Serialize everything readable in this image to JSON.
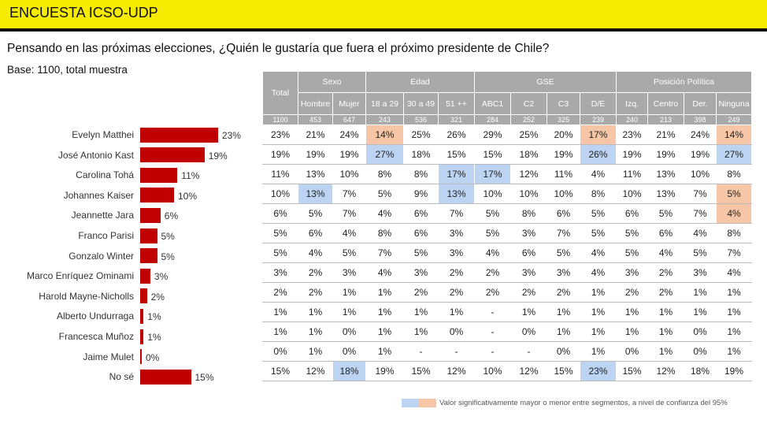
{
  "header": {
    "title": "ENCUESTA ICSO-UDP"
  },
  "question": "Pensando en las próximas elecciones, ¿Quién le gustaría que fuera el próximo presidente de Chile?",
  "base": "Base: 1100, total muestra",
  "colors": {
    "bar": "#c00000",
    "header_bg": "#f5ec00",
    "high": "#f6c6a6",
    "low": "#bcd4f2"
  },
  "table": {
    "total_label": "Total",
    "total_n": "1100",
    "groups": [
      {
        "label": "Sexo",
        "columns": [
          {
            "label": "Hombre",
            "n": "453"
          },
          {
            "label": "Mujer",
            "n": "647"
          }
        ]
      },
      {
        "label": "Edad",
        "columns": [
          {
            "label": "18 a  29",
            "n": "243"
          },
          {
            "label": "30 a  49",
            "n": "536"
          },
          {
            "label": "51 ++",
            "n": "321"
          }
        ]
      },
      {
        "label": "GSE",
        "columns": [
          {
            "label": "ABC1",
            "n": "284"
          },
          {
            "label": "C2",
            "n": "252"
          },
          {
            "label": "C3",
            "n": "325"
          },
          {
            "label": "D/E",
            "n": "239"
          }
        ]
      },
      {
        "label": "Posición Política",
        "columns": [
          {
            "label": "Izq.",
            "n": "240"
          },
          {
            "label": "Centro",
            "n": "213"
          },
          {
            "label": "Der.",
            "n": "398"
          },
          {
            "label": "Ninguna",
            "n": "249"
          }
        ]
      }
    ],
    "rows": [
      {
        "name": "Evelyn Matthei",
        "values": [
          "23%",
          "21%",
          "24%",
          "14%",
          "25%",
          "26%",
          "29%",
          "25%",
          "20%",
          "17%",
          "23%",
          "21%",
          "24%",
          "14%"
        ],
        "high": [
          3,
          9,
          13
        ],
        "low": []
      },
      {
        "name": "José Antonio Kast",
        "values": [
          "19%",
          "19%",
          "19%",
          "27%",
          "18%",
          "15%",
          "15%",
          "18%",
          "19%",
          "26%",
          "19%",
          "19%",
          "19%",
          "27%"
        ],
        "high": [],
        "low": [
          3,
          9,
          13
        ]
      },
      {
        "name": "Carolina Tohá",
        "values": [
          "11%",
          "13%",
          "10%",
          "8%",
          "8%",
          "17%",
          "17%",
          "12%",
          "11%",
          "4%",
          "11%",
          "13%",
          "10%",
          "8%"
        ],
        "high": [],
        "low": [
          5,
          6
        ]
      },
      {
        "name": "Johannes Kaiser",
        "values": [
          "10%",
          "13%",
          "7%",
          "5%",
          "9%",
          "13%",
          "10%",
          "10%",
          "10%",
          "8%",
          "10%",
          "13%",
          "7%",
          "5%"
        ],
        "high": [
          13
        ],
        "low": [
          1,
          5
        ]
      },
      {
        "name": "Jeannette Jara",
        "values": [
          "6%",
          "5%",
          "7%",
          "4%",
          "6%",
          "7%",
          "5%",
          "8%",
          "6%",
          "5%",
          "6%",
          "5%",
          "7%",
          "4%"
        ],
        "high": [
          13
        ],
        "low": []
      },
      {
        "name": "Franco Parisi",
        "values": [
          "5%",
          "6%",
          "4%",
          "8%",
          "6%",
          "3%",
          "5%",
          "3%",
          "7%",
          "5%",
          "5%",
          "6%",
          "4%",
          "8%"
        ],
        "high": [],
        "low": []
      },
      {
        "name": "Gonzalo Winter",
        "values": [
          "5%",
          "4%",
          "5%",
          "7%",
          "5%",
          "3%",
          "4%",
          "6%",
          "5%",
          "4%",
          "5%",
          "4%",
          "5%",
          "7%"
        ],
        "high": [],
        "low": []
      },
      {
        "name": "Marco Enríquez Ominami",
        "values": [
          "3%",
          "2%",
          "3%",
          "4%",
          "3%",
          "2%",
          "2%",
          "3%",
          "3%",
          "4%",
          "3%",
          "2%",
          "3%",
          "4%"
        ],
        "high": [],
        "low": []
      },
      {
        "name": "Harold Mayne-Nicholls",
        "values": [
          "2%",
          "2%",
          "1%",
          "1%",
          "2%",
          "2%",
          "2%",
          "2%",
          "2%",
          "1%",
          "2%",
          "2%",
          "1%",
          "1%"
        ],
        "high": [],
        "low": []
      },
      {
        "name": "Alberto Undurraga",
        "values": [
          "1%",
          "1%",
          "1%",
          "1%",
          "1%",
          "1%",
          "-",
          "1%",
          "1%",
          "1%",
          "1%",
          "1%",
          "1%",
          "1%"
        ],
        "high": [],
        "low": []
      },
      {
        "name": "Francesca Muñoz",
        "values": [
          "1%",
          "1%",
          "0%",
          "1%",
          "1%",
          "0%",
          "-",
          "0%",
          "1%",
          "1%",
          "1%",
          "1%",
          "0%",
          "1%"
        ],
        "high": [],
        "low": []
      },
      {
        "name": "Jaime Mulet",
        "values": [
          "0%",
          "1%",
          "0%",
          "1%",
          "-",
          "-",
          "-",
          "-",
          "0%",
          "1%",
          "0%",
          "1%",
          "0%",
          "1%"
        ],
        "high": [],
        "low": []
      },
      {
        "name": "No sé",
        "values": [
          "15%",
          "12%",
          "18%",
          "19%",
          "15%",
          "12%",
          "10%",
          "12%",
          "15%",
          "23%",
          "15%",
          "12%",
          "18%",
          "19%"
        ],
        "high": [],
        "low": [
          2,
          9
        ]
      }
    ]
  },
  "chart_data": {
    "type": "bar",
    "orientation": "horizontal",
    "categories": [
      "Evelyn Matthei",
      "José Antonio Kast",
      "Carolina Tohá",
      "Johannes Kaiser",
      "Jeannette Jara",
      "Franco Parisi",
      "Gonzalo Winter",
      "Marco Enríquez Ominami",
      "Harold Mayne-Nicholls",
      "Alberto Undurraga",
      "Francesca Muñoz",
      "Jaime Mulet",
      "No sé"
    ],
    "values": [
      23,
      19,
      11,
      10,
      6,
      5,
      5,
      3,
      2,
      1,
      1,
      0,
      15
    ],
    "value_labels": [
      "23%",
      "19%",
      "11%",
      "10%",
      "6%",
      "5%",
      "5%",
      "3%",
      "2%",
      "1%",
      "1%",
      "0%",
      "15%"
    ],
    "unit": "%"
  },
  "legend": {
    "text": "Valor significativamente mayor o menor entre segmentos, a nivel de confianza del 95%"
  }
}
